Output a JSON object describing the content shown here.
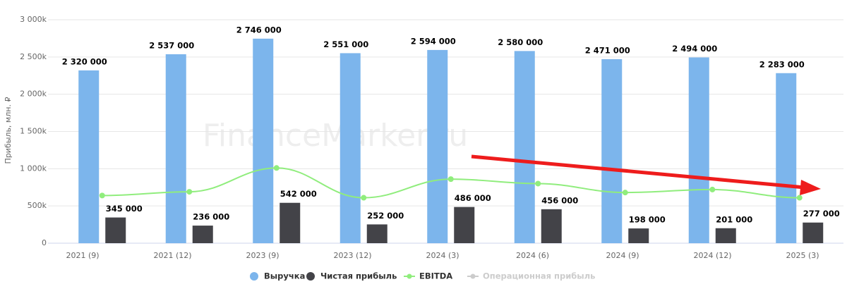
{
  "chart_data": {
    "type": "bar",
    "y_label": "Прибыль, млн. ₽",
    "watermark": "FinanceMarker.ru",
    "categories": [
      "2021 (9)",
      "2021 (12)",
      "2023 (9)",
      "2023 (12)",
      "2024 (3)",
      "2024 (6)",
      "2024 (9)",
      "2024 (12)",
      "2025 (3)"
    ],
    "series": [
      {
        "name": "Выручка",
        "type": "bar",
        "color": "#7cb5ec",
        "values": [
          2320000,
          2537000,
          2746000,
          2551000,
          2594000,
          2580000,
          2471000,
          2494000,
          2283000
        ],
        "value_labels": [
          "2 320 000",
          "2 537 000",
          "2 746 000",
          "2 551 000",
          "2 594 000",
          "2 580 000",
          "2 471 000",
          "2 494 000",
          "2 283 000"
        ]
      },
      {
        "name": "Чистая прибыль",
        "type": "bar",
        "color": "#434348",
        "values": [
          345000,
          236000,
          542000,
          252000,
          486000,
          456000,
          198000,
          201000,
          277000
        ],
        "value_labels": [
          "345 000",
          "236 000",
          "542 000",
          "252 000",
          "486 000",
          "456 000",
          "198 000",
          "201 000",
          "277 000"
        ]
      },
      {
        "name": "EBITDA",
        "type": "line",
        "color": "#90ed7d",
        "values": [
          640000,
          690000,
          1010000,
          610000,
          860000,
          800000,
          680000,
          720000,
          610000
        ]
      },
      {
        "name": "Операционная прибыль",
        "type": "line",
        "color": "#cccccc",
        "hidden": true,
        "values": [
          null,
          null,
          null,
          null,
          null,
          null,
          null,
          null,
          null
        ]
      }
    ],
    "ylim": [
      0,
      3000000
    ],
    "yticks": [
      0,
      {
        "value": 500000,
        "label": "500k"
      },
      {
        "value": 1000000,
        "label": "1 000k"
      },
      {
        "value": 1500000,
        "label": "1 500k"
      },
      {
        "value": 2000000,
        "label": "2 000k"
      },
      {
        "value": 2500000,
        "label": "2 500k"
      },
      {
        "value": 3000000,
        "label": "3 000k"
      }
    ],
    "grid": true
  }
}
